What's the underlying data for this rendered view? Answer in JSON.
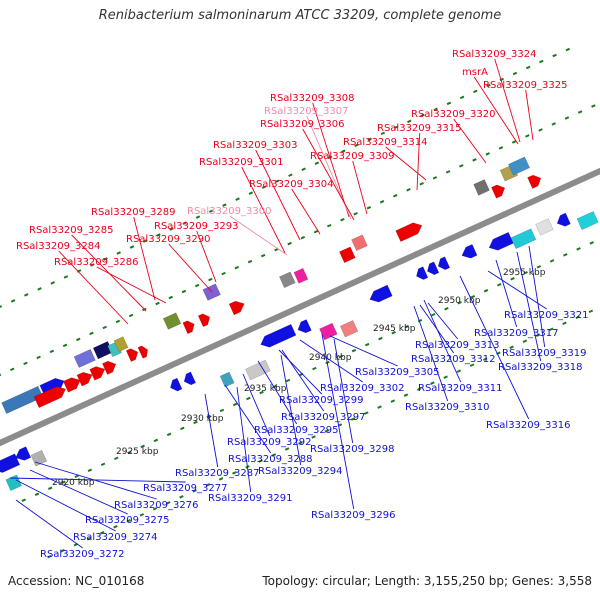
{
  "title": "Renibacterium salmoninarum ATCC 33209, complete genome",
  "accession": "Accession: NC_010168",
  "summary": "Topology: circular; Length: 3,155,250 bp; Genes: 3,558",
  "kbp_ticks": [
    "2920 kbp",
    "2925 kbp",
    "2930 kbp",
    "2935 kbp",
    "2940 kbp",
    "2945 kbp",
    "2950 kbp",
    "2955 kbp"
  ],
  "colors": {
    "forward_label": "#e8001c",
    "faded_label": "#f08ca8",
    "reverse_label": "#1010d8",
    "backbone": "#8c8c8c",
    "tick": "#1a7a1a"
  },
  "top_labels": [
    "RSal33209_3324",
    "msrA",
    "RSal33209_3325",
    "RSal33209_3320",
    "RSal33209_3308",
    "RSal33209_3307",
    "RSal33209_3306",
    "RSal33209_3315",
    "RSal33209_3303",
    "RSal33209_3314",
    "RSal33209_3309",
    "RSal33209_3301",
    "RSal33209_3304",
    "RSal33209_3289",
    "RSal33209_3300",
    "RSal33209_3293",
    "RSal33209_3285",
    "RSal33209_3290",
    "RSal33209_3284",
    "RSal33209_3286"
  ],
  "bottom_labels": [
    "RSal33209_3321",
    "RSal33209_3317",
    "RSal33209_3313",
    "RSal33209_3319",
    "RSal33209_3312",
    "RSal33209_3318",
    "RSal33209_3305",
    "RSal33209_3302",
    "RSal33209_3311",
    "RSal33209_3299",
    "RSal33209_3310",
    "RSal33209_3297",
    "RSal33209_3316",
    "RSal33209_3295",
    "RSal33209_3292",
    "RSal33209_3298",
    "RSal33209_3288",
    "RSal33209_3287",
    "RSal33209_3294",
    "RSal33209_3277",
    "RSal33209_3291",
    "RSal33209_3276",
    "RSal33209_3296",
    "RSal33209_3275",
    "RSal33209_3274",
    "RSal33209_3272"
  ]
}
